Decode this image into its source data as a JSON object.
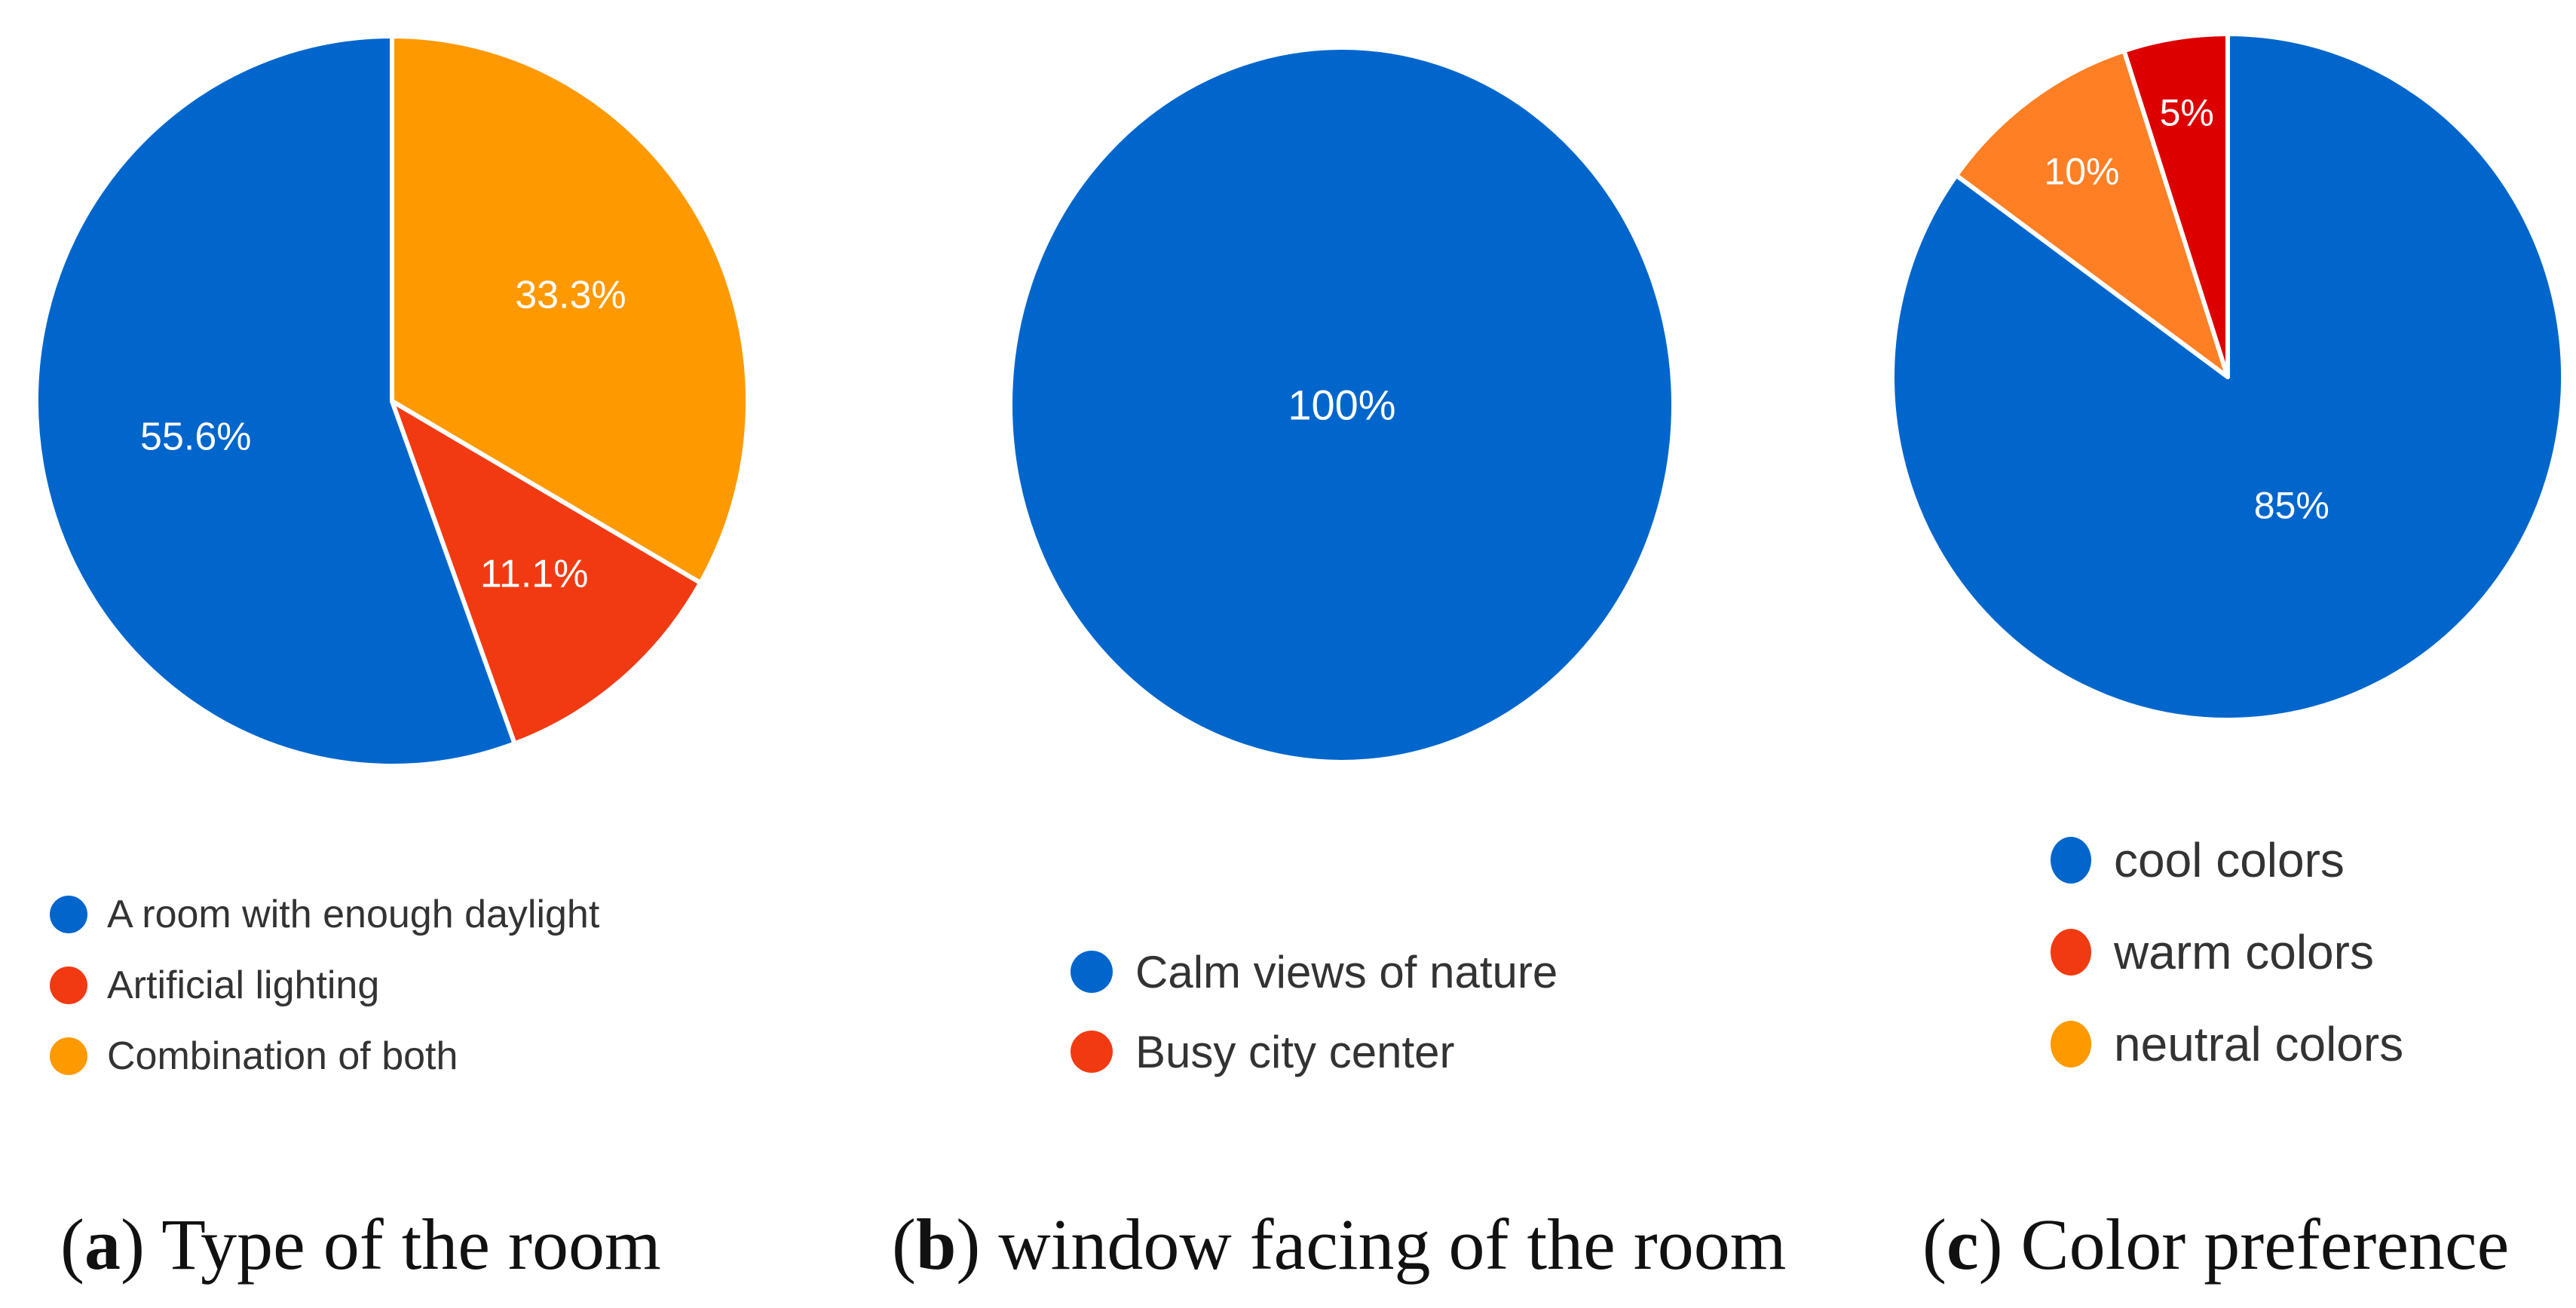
{
  "colors": {
    "blue": "#0066cc",
    "red": "#f23a12",
    "orange": "#ff9900",
    "bright_orange": "#ff7f24",
    "dark_red": "#dd0000"
  },
  "chart_data": [
    {
      "type": "pie",
      "id": "a",
      "title": "Type of the room",
      "caption_letter": "a",
      "slices": [
        {
          "label": "A room with enough daylight",
          "value": 55.6,
          "display": "55.6%",
          "color": "#0066cc"
        },
        {
          "label": "Artificial lighting",
          "value": 11.1,
          "display": "11.1%",
          "color": "#f23a12"
        },
        {
          "label": "Combination of both",
          "value": 33.3,
          "display": "33.3%",
          "color": "#ff9900"
        }
      ]
    },
    {
      "type": "pie",
      "id": "b",
      "title": "window facing of the room",
      "caption_letter": "b",
      "slices": [
        {
          "label": "Calm views of nature",
          "value": 100,
          "display": "100%",
          "color": "#0066cc"
        },
        {
          "label": "Busy city center",
          "value": 0,
          "display": "",
          "color": "#f23a12"
        }
      ]
    },
    {
      "type": "pie",
      "id": "c",
      "title": "Color preference",
      "caption_letter": "c",
      "slices": [
        {
          "label": "cool colors",
          "value": 85,
          "display": "85%",
          "color": "#0066cc"
        },
        {
          "label": "warm colors",
          "value": 5,
          "display": "5%",
          "color": "#dd0000",
          "legend_color": "#f23a12"
        },
        {
          "label": "neutral colors",
          "value": 10,
          "display": "10%",
          "color": "#ff7f24",
          "legend_color": "#ff9900"
        }
      ]
    }
  ]
}
